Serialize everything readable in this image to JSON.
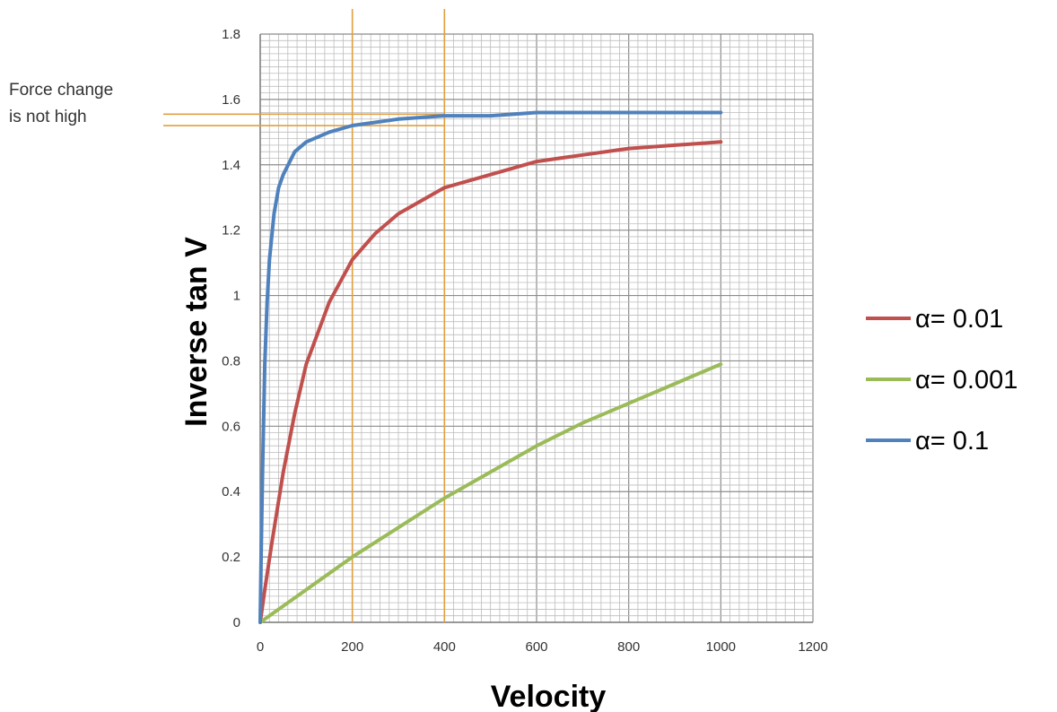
{
  "chart_data": {
    "type": "line",
    "xlabel": "Velocity",
    "ylabel": "Inverse tan V",
    "xlim": [
      0,
      1200
    ],
    "ylim": [
      0,
      1.8
    ],
    "x_ticks": [
      "0",
      "200",
      "400",
      "600",
      "800",
      "1000",
      "1200"
    ],
    "y_ticks": [
      "0",
      "0.2",
      "0.4",
      "0.6",
      "0.8",
      "1",
      "1.2",
      "1.4",
      "1.6",
      "1.8"
    ],
    "grid": true,
    "legend_position": "right",
    "series": [
      {
        "name": "α= 0.01",
        "color": "#c0504d",
        "x": [
          0,
          10,
          25,
          50,
          75,
          100,
          150,
          200,
          250,
          300,
          400,
          500,
          600,
          700,
          800,
          900,
          1000
        ],
        "y": [
          0,
          0.1,
          0.24,
          0.46,
          0.64,
          0.79,
          0.98,
          1.11,
          1.19,
          1.25,
          1.33,
          1.37,
          1.41,
          1.43,
          1.45,
          1.46,
          1.47
        ]
      },
      {
        "name": "α= 0.001",
        "color": "#9bbb59",
        "x": [
          0,
          100,
          200,
          300,
          400,
          500,
          600,
          700,
          800,
          900,
          1000
        ],
        "y": [
          0,
          0.1,
          0.2,
          0.29,
          0.38,
          0.46,
          0.54,
          0.61,
          0.67,
          0.73,
          0.79
        ]
      },
      {
        "name": "α= 0.1",
        "color": "#4f81bd",
        "x": [
          0,
          2,
          5,
          10,
          15,
          20,
          30,
          40,
          50,
          75,
          100,
          150,
          200,
          300,
          400,
          500,
          600,
          800,
          1000
        ],
        "y": [
          0,
          0.2,
          0.46,
          0.79,
          0.98,
          1.11,
          1.25,
          1.33,
          1.37,
          1.44,
          1.47,
          1.5,
          1.52,
          1.54,
          1.55,
          1.55,
          1.56,
          1.56,
          1.56
        ]
      }
    ],
    "annotation": {
      "lines": [
        "Force change",
        "is not high"
      ],
      "color": "#e0a040",
      "vertical_marker_x": [
        200,
        400
      ],
      "horizontal_marker_y": [
        1.52,
        1.555
      ]
    }
  }
}
